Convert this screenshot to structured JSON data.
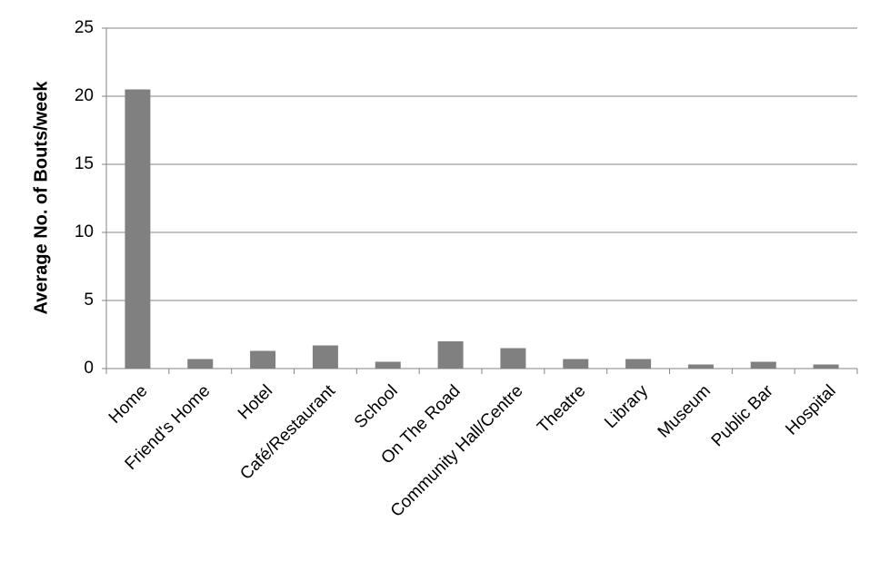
{
  "chart_data": {
    "type": "bar",
    "y_axis_label": "Average No. of Bouts/week",
    "categories": [
      "Home",
      "Friend's Home",
      "Hotel",
      "Café/Restaurant",
      "School",
      "On The Road",
      "Community Hall/Centre",
      "Theatre",
      "Library",
      "Museum",
      "Public Bar",
      "Hospital"
    ],
    "values": [
      20.5,
      0.7,
      1.3,
      1.7,
      0.5,
      2.0,
      1.5,
      0.7,
      0.7,
      0.3,
      0.5,
      0.3
    ],
    "color": "#808080",
    "ylim": [
      0,
      25
    ],
    "yticks": [
      0,
      5,
      10,
      15,
      20,
      25
    ],
    "grid": true
  }
}
